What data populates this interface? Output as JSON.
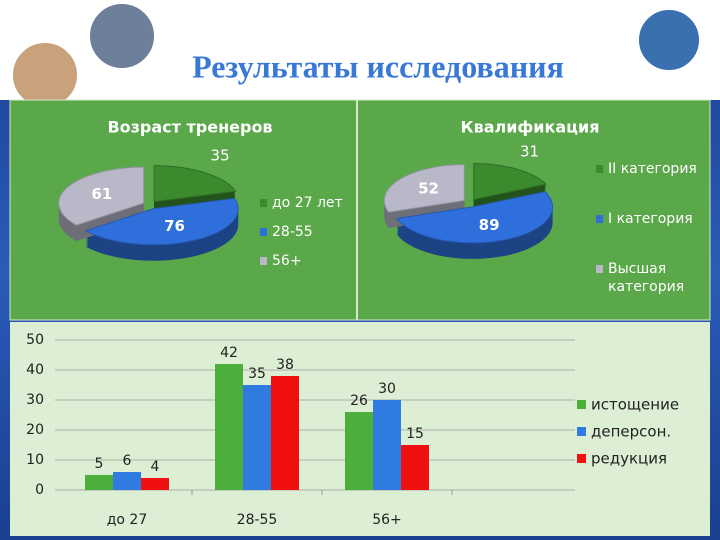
{
  "title": "Результаты исследования",
  "chart_data": [
    {
      "type": "pie",
      "title": "Возраст тренеров",
      "categories": [
        "до 27 лет",
        "28-55",
        "56+"
      ],
      "values": [
        35,
        76,
        61
      ],
      "colors": [
        "#3b8a2e",
        "#2f6fdc",
        "#b8b8c8"
      ]
    },
    {
      "type": "pie",
      "title": "Квалификация",
      "categories": [
        "II категория",
        "I категория",
        "Высшая категория"
      ],
      "values": [
        31,
        89,
        52
      ],
      "colors": [
        "#3b8a2e",
        "#2f6fdc",
        "#b8b8c8"
      ]
    },
    {
      "type": "bar",
      "categories": [
        "до 27",
        "28-55",
        "56+"
      ],
      "series": [
        {
          "name": "истощение",
          "color": "#4caf3c",
          "values": [
            5,
            42,
            26
          ]
        },
        {
          "name": "деперсон.",
          "color": "#2f7be0",
          "values": [
            6,
            35,
            30
          ]
        },
        {
          "name": "редукция",
          "color": "#f01010",
          "values": [
            4,
            38,
            15
          ]
        }
      ],
      "ylim": [
        0,
        50
      ],
      "yticks": [
        0,
        10,
        20,
        30,
        40,
        50
      ],
      "grid": true
    }
  ]
}
